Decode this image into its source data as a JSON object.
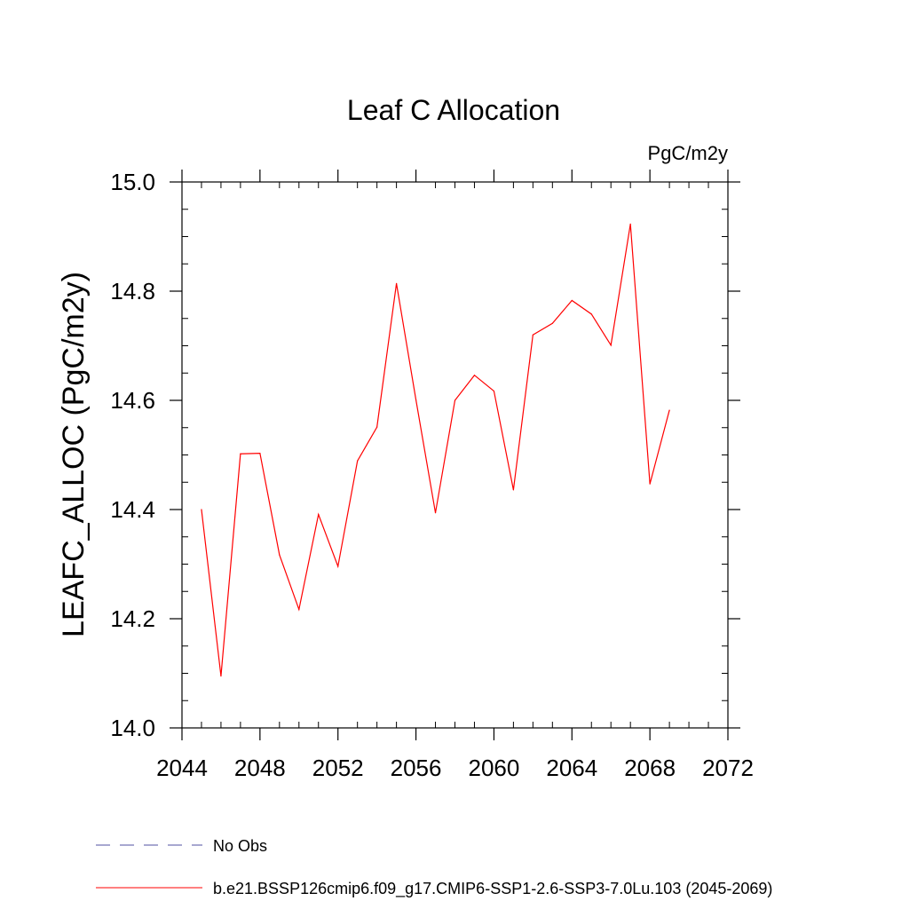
{
  "chart_data": {
    "type": "line",
    "title": "Leaf C Allocation",
    "units_label": "PgC/m2y",
    "ylabel": "LEAFC_ALLOC  (PgC/m2y)",
    "xlabel": "",
    "xlim": [
      2044,
      2072
    ],
    "ylim": [
      14.0,
      15.0
    ],
    "x_ticks": [
      2044,
      2048,
      2052,
      2056,
      2060,
      2064,
      2068,
      2072
    ],
    "x_tick_labels": [
      "2044",
      "2048",
      "2052",
      "2056",
      "2060",
      "2064",
      "2068",
      "2072"
    ],
    "y_ticks": [
      14.0,
      14.2,
      14.4,
      14.6,
      14.8,
      15.0
    ],
    "y_tick_labels": [
      "14.0",
      "14.2",
      "14.4",
      "14.6",
      "14.8",
      "15.0"
    ],
    "x_minor_step": 1,
    "y_minor_step": 0.05,
    "grid": false,
    "legend_position": "bottom-left",
    "series": [
      {
        "name": "b.e21.BSSP126cmip6.f09_g17.CMIP6-SSP1-2.6-SSP3-7.0Lu.103 (2045-2069)",
        "color": "#ff0000",
        "style": "solid",
        "x": [
          2045,
          2046,
          2047,
          2048,
          2049,
          2050,
          2051,
          2052,
          2053,
          2054,
          2055,
          2056,
          2057,
          2058,
          2059,
          2060,
          2061,
          2062,
          2063,
          2064,
          2065,
          2066,
          2067,
          2068,
          2069
        ],
        "values": [
          14.4,
          14.095,
          14.502,
          14.503,
          14.317,
          14.217,
          14.391,
          14.296,
          14.489,
          14.551,
          14.814,
          14.601,
          14.394,
          14.6,
          14.646,
          14.617,
          14.436,
          14.72,
          14.741,
          14.783,
          14.758,
          14.701,
          14.923,
          14.447,
          14.582
        ]
      }
    ],
    "legend": [
      {
        "label": "No Obs",
        "color": "#5050a0",
        "style": "dashed"
      },
      {
        "label": "b.e21.BSSP126cmip6.f09_g17.CMIP6-SSP1-2.6-SSP3-7.0Lu.103 (2045-2069)",
        "color": "#ff0000",
        "style": "solid"
      }
    ]
  }
}
